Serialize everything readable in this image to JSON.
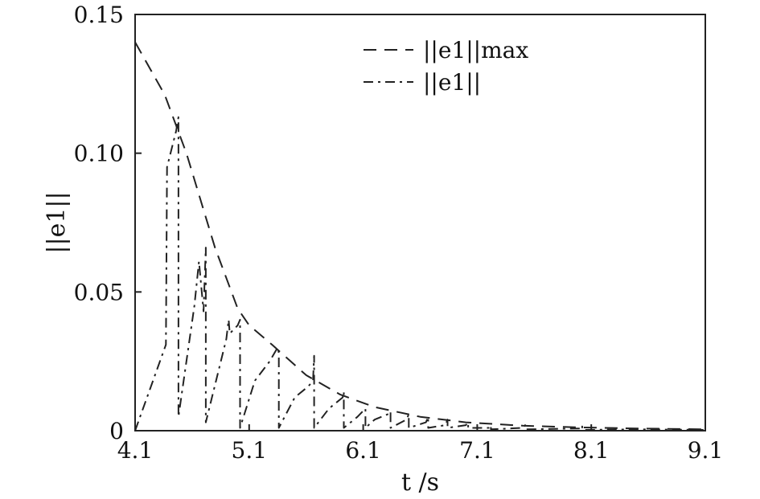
{
  "chart_data": {
    "type": "line",
    "xlabel": "t /s",
    "ylabel": "||e1||",
    "xlim": [
      4.1,
      9.1
    ],
    "ylim": [
      0,
      0.15
    ],
    "xticks": [
      "4.1",
      "5.1",
      "6.1",
      "7.1",
      "8.1",
      "9.1"
    ],
    "yticks": [
      "0",
      "0.05",
      "0.10",
      "0.15"
    ],
    "grid": false,
    "legend_position": "top-right",
    "series": [
      {
        "name": "||e1||max",
        "style": "dashed",
        "color": "#222222",
        "x": [
          4.1,
          4.36,
          4.55,
          4.8,
          5.0,
          5.1,
          5.3,
          5.6,
          5.9,
          6.2,
          6.6,
          7.0,
          7.5,
          8.0,
          8.5,
          9.1
        ],
        "y": [
          0.14,
          0.121,
          0.1,
          0.066,
          0.044,
          0.038,
          0.031,
          0.02,
          0.013,
          0.0085,
          0.005,
          0.003,
          0.0018,
          0.0012,
          0.0008,
          0.0005
        ]
      },
      {
        "name": "||e1||",
        "style": "dashdot",
        "color": "#222222",
        "x": [
          4.1,
          4.37,
          4.38,
          4.46,
          4.48,
          4.48,
          4.62,
          4.66,
          4.7,
          4.72,
          4.72,
          4.9,
          4.92,
          4.93,
          5.0,
          5.02,
          5.02,
          5.15,
          5.28,
          5.35,
          5.36,
          5.36,
          5.5,
          5.62,
          5.66,
          5.67,
          5.67,
          5.8,
          5.92,
          5.93,
          5.93,
          6.05,
          6.12,
          6.12,
          6.2,
          6.32,
          6.34,
          6.34,
          6.48,
          6.5,
          6.5,
          6.65,
          6.67,
          6.67,
          6.82,
          6.84,
          6.84,
          7.0,
          7.02,
          7.02,
          7.2,
          7.22,
          7.22,
          7.5,
          7.52,
          7.52,
          8.0,
          8.02,
          8.02,
          8.5,
          9.1
        ],
        "y": [
          0,
          0.031,
          0.095,
          0.108,
          0.113,
          0.005,
          0.045,
          0.061,
          0.043,
          0.066,
          0.003,
          0.033,
          0.04,
          0.035,
          0.038,
          0.04,
          0.001,
          0.018,
          0.025,
          0.03,
          0.028,
          0.001,
          0.012,
          0.016,
          0.018,
          0.027,
          0.001,
          0.008,
          0.012,
          0.014,
          0.001,
          0.005,
          0.008,
          0.001,
          0.004,
          0.006,
          0.007,
          0.001,
          0.004,
          0.006,
          0.001,
          0.003,
          0.005,
          0.001,
          0.002,
          0.004,
          0.001,
          0.002,
          0.003,
          0.001,
          0.001,
          0.002,
          0.0005,
          0.001,
          0.002,
          0.0005,
          0.0008,
          0.002,
          0.0003,
          0.0005,
          0.0003
        ]
      }
    ]
  }
}
